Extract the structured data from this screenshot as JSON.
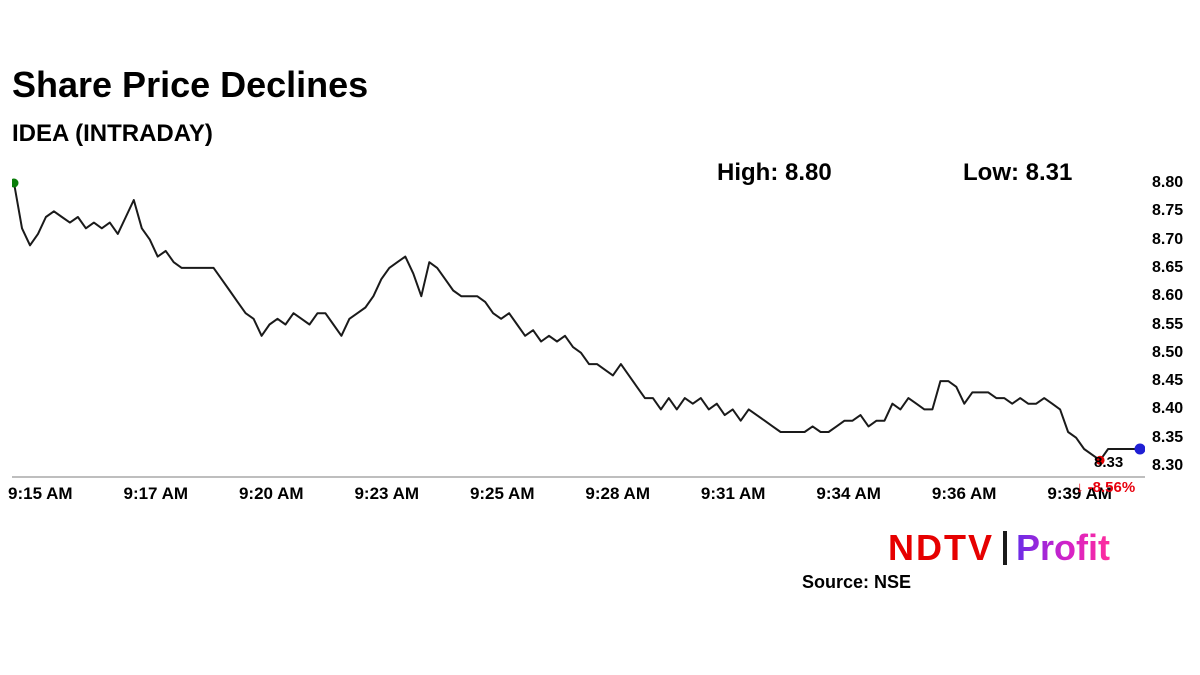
{
  "header": {
    "title": "Share Price Declines",
    "subtitle": "IDEA (INTRADAY)"
  },
  "footer": {
    "logo_ndtv": "NDTV",
    "logo_profit": "Profit",
    "source": "Source: NSE"
  },
  "chart_data": {
    "type": "line",
    "title": "IDEA (INTRADAY)",
    "high": 8.8,
    "low": 8.31,
    "last": 8.33,
    "high_label": "High: 8.80",
    "low_label": "Low: 8.31",
    "last_label": "8.33",
    "change_label": "↓ -8.56%",
    "ylim": [
      8.3,
      8.8
    ],
    "y_ticks": [
      8.8,
      8.75,
      8.7,
      8.65,
      8.6,
      8.55,
      8.5,
      8.45,
      8.4,
      8.35,
      8.3
    ],
    "x_tick_labels": [
      "9:15 AM",
      "9:17 AM",
      "9:20 AM",
      "9:23 AM",
      "9:25 AM",
      "9:28 AM",
      "9:31 AM",
      "9:34 AM",
      "9:36 AM",
      "9:39 AM"
    ],
    "grid": false,
    "legend": "none",
    "line_color": "#1a1a1a",
    "axis_color": "#a8a8a8",
    "start_dot_color": "#0a7d0a",
    "low_dot_color": "#e60000",
    "end_dot_color": "#1f1fd4",
    "change_color": "#e8000d",
    "prices": [
      8.8,
      8.72,
      8.69,
      8.71,
      8.74,
      8.75,
      8.74,
      8.73,
      8.74,
      8.72,
      8.73,
      8.72,
      8.73,
      8.71,
      8.74,
      8.77,
      8.72,
      8.7,
      8.67,
      8.68,
      8.66,
      8.65,
      8.65,
      8.65,
      8.65,
      8.65,
      8.63,
      8.61,
      8.59,
      8.57,
      8.56,
      8.53,
      8.55,
      8.56,
      8.55,
      8.57,
      8.56,
      8.55,
      8.57,
      8.57,
      8.55,
      8.53,
      8.56,
      8.57,
      8.58,
      8.6,
      8.63,
      8.65,
      8.66,
      8.67,
      8.64,
      8.6,
      8.66,
      8.65,
      8.63,
      8.61,
      8.6,
      8.6,
      8.6,
      8.59,
      8.57,
      8.56,
      8.57,
      8.55,
      8.53,
      8.54,
      8.52,
      8.53,
      8.52,
      8.53,
      8.51,
      8.5,
      8.48,
      8.48,
      8.47,
      8.46,
      8.48,
      8.46,
      8.44,
      8.42,
      8.42,
      8.4,
      8.42,
      8.4,
      8.42,
      8.41,
      8.42,
      8.4,
      8.41,
      8.39,
      8.4,
      8.38,
      8.4,
      8.39,
      8.38,
      8.37,
      8.36,
      8.36,
      8.36,
      8.36,
      8.37,
      8.36,
      8.36,
      8.37,
      8.38,
      8.38,
      8.39,
      8.37,
      8.38,
      8.38,
      8.41,
      8.4,
      8.42,
      8.41,
      8.4,
      8.4,
      8.45,
      8.45,
      8.44,
      8.41,
      8.43,
      8.43,
      8.43,
      8.42,
      8.42,
      8.41,
      8.42,
      8.41,
      8.41,
      8.42,
      8.41,
      8.4,
      8.36,
      8.35,
      8.33,
      8.32,
      8.31,
      8.33,
      8.33,
      8.33,
      8.33,
      8.33
    ]
  }
}
